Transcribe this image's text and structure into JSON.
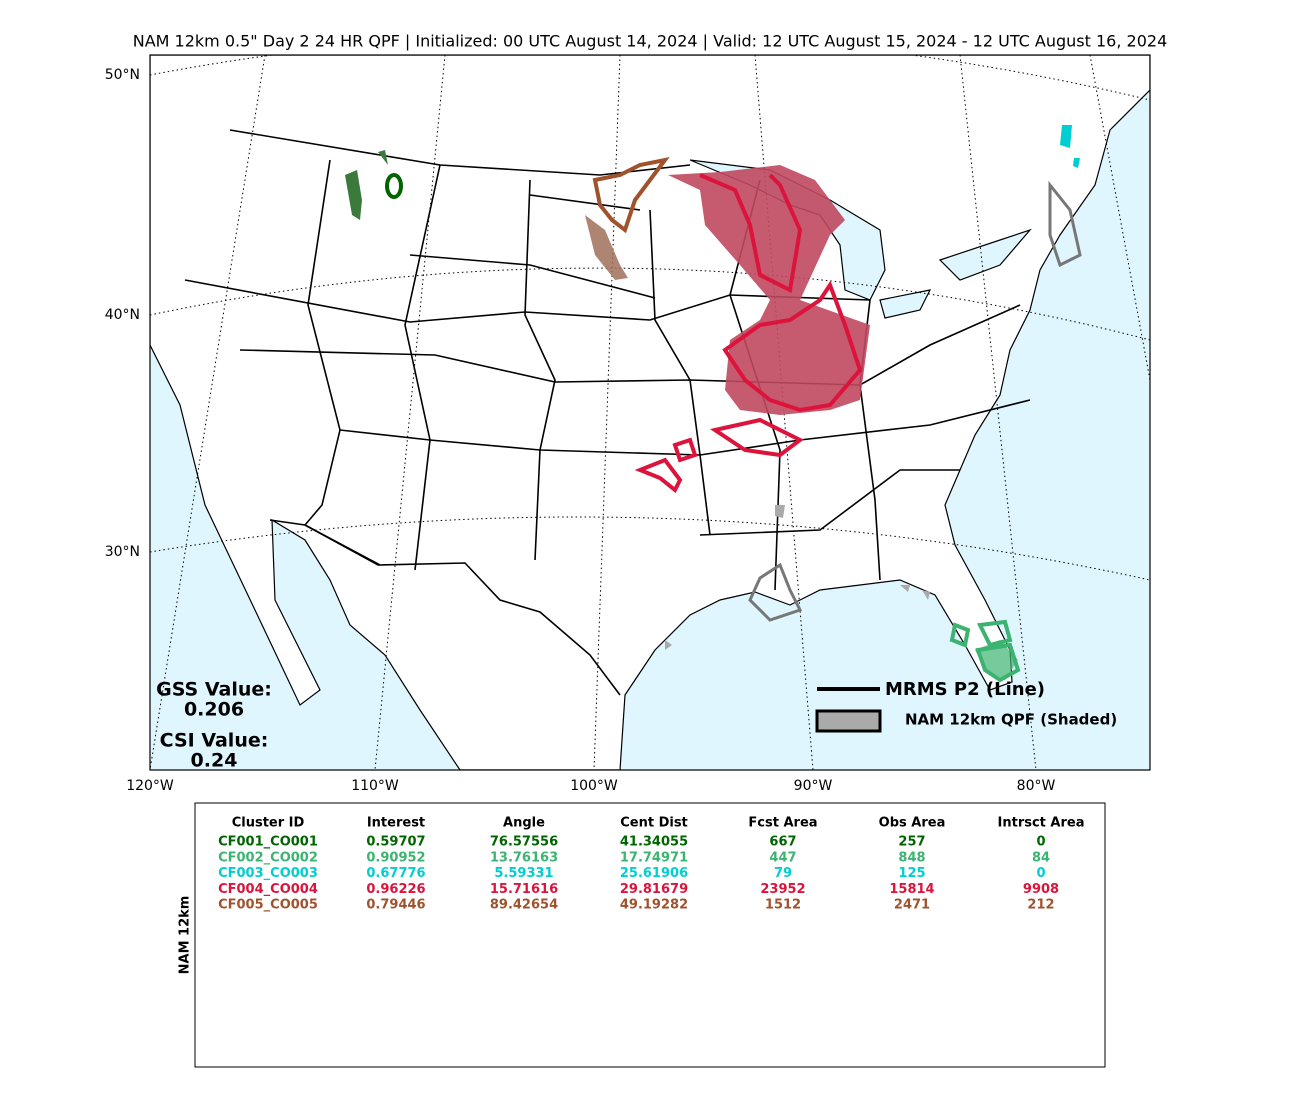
{
  "title": "NAM 12km 0.5\" Day 2 24 HR QPF | Initialized: 00 UTC August 14, 2024 | Valid: 12 UTC August 15, 2024 - 12 UTC August 16, 2024",
  "map": {
    "lat_labels": [
      "50°N",
      "40°N",
      "30°N"
    ],
    "lon_labels": [
      "120°W",
      "110°W",
      "100°W",
      "90°W",
      "80°W"
    ]
  },
  "scores": {
    "gss_label": "GSS Value:",
    "gss_value": "0.206",
    "csi_label": "CSI Value:",
    "csi_value": "0.24"
  },
  "legend": {
    "line": "MRMS P2 (Line)",
    "shaded": "NAM 12km QPF (Shaded)"
  },
  "table": {
    "side_label": "NAM 12km",
    "headers": [
      "Cluster ID",
      "Interest",
      "Angle",
      "Cent Dist",
      "Fcst Area",
      "Obs Area",
      "Intrsct Area"
    ],
    "row_colors": [
      "#006400",
      "#3cb371",
      "#00ced1",
      "#dc143c",
      "#a0522d"
    ],
    "rows": [
      [
        "CF001_CO001",
        "0.59707",
        "76.57556",
        "41.34055",
        "667",
        "257",
        "0"
      ],
      [
        "CF002_CO002",
        "0.90952",
        "13.76163",
        "17.74971",
        "447",
        "848",
        "84"
      ],
      [
        "CF003_CO003",
        "0.67776",
        "5.59331",
        "25.61906",
        "79",
        "125",
        "0"
      ],
      [
        "CF004_CO004",
        "0.96226",
        "15.71616",
        "29.81679",
        "23952",
        "15814",
        "9908"
      ],
      [
        "CF005_CO005",
        "0.79446",
        "89.42654",
        "49.19282",
        "1512",
        "2471",
        "212"
      ]
    ]
  }
}
